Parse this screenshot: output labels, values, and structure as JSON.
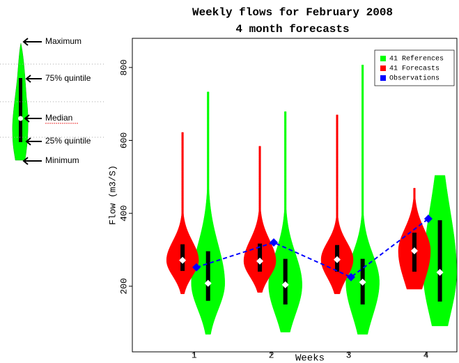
{
  "chart_data": {
    "type": "violin",
    "title": "Weekly flows for February 2008",
    "subtitle": "4 month forecasts",
    "x_label": "Weeks",
    "y_label": "Flow (m3/S)",
    "xlim": [
      0.2,
      4.4
    ],
    "xticks": [
      1,
      2,
      3,
      4
    ],
    "ylim": [
      20,
      880
    ],
    "yticks": [
      200,
      400,
      600,
      800
    ],
    "legend": "upper right",
    "series": [
      {
        "name": "41 References",
        "color": "#00ff00",
        "values": [
          {
            "min": 68,
            "q1": 160,
            "median": 208,
            "q3": 296,
            "max": 733
          },
          {
            "min": 74,
            "q1": 150,
            "median": 204,
            "q3": 275,
            "max": 679
          },
          {
            "min": 68,
            "q1": 150,
            "median": 211,
            "q3": 275,
            "max": 807
          },
          {
            "min": 91,
            "q1": 158,
            "median": 238,
            "q3": 381,
            "max": 504
          }
        ]
      },
      {
        "name": "41 Forecasts",
        "color": "#ff0000",
        "values": [
          {
            "min": 179,
            "q1": 242,
            "median": 271,
            "q3": 315,
            "max": 622
          },
          {
            "min": 183,
            "q1": 240,
            "median": 269,
            "q3": 317,
            "max": 584
          },
          {
            "min": 179,
            "q1": 240,
            "median": 273,
            "q3": 313,
            "max": 670
          },
          {
            "min": 192,
            "q1": 240,
            "median": 297,
            "q3": 347,
            "max": 469
          }
        ]
      },
      {
        "name": "Observations",
        "color": "#0000ff",
        "values": [
          252,
          320,
          225,
          385
        ]
      }
    ],
    "annotations": [
      "Maximum",
      "75% quintile",
      "Median",
      "25% quintile",
      "Minimum"
    ]
  }
}
